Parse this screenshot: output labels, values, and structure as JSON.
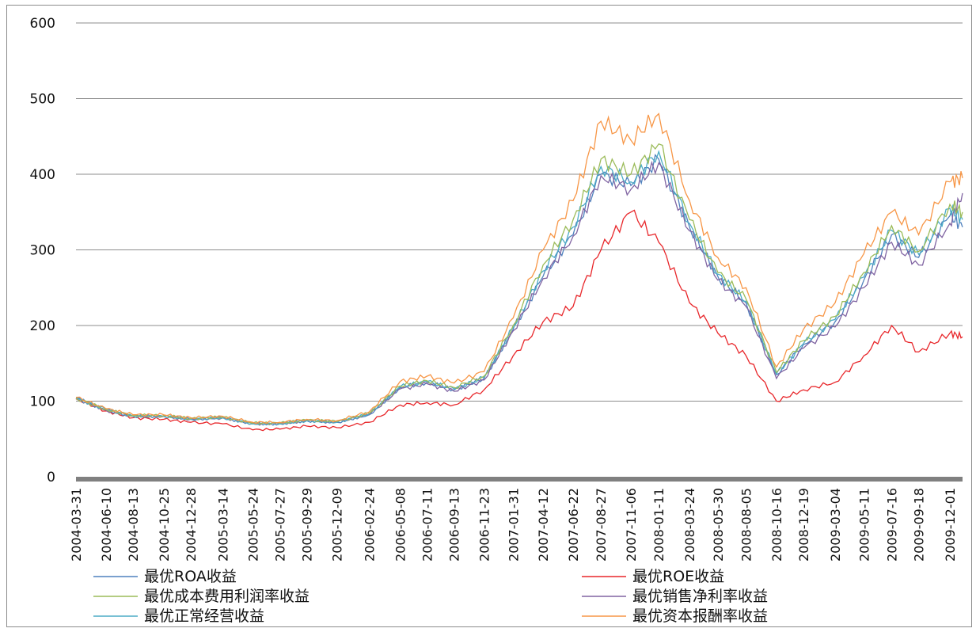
{
  "chart_data": {
    "type": "line",
    "title": "",
    "xlabel": "",
    "ylabel": "",
    "ylim": [
      0,
      600
    ],
    "y_ticks": [
      "0",
      "100",
      "200",
      "300",
      "400",
      "500",
      "600"
    ],
    "grid": "horizontal",
    "legend_position": "bottom",
    "x_tick_labels": [
      "2004-03-31",
      "2004-06-10",
      "2004-08-13",
      "2004-10-25",
      "2004-12-28",
      "2005-03-14",
      "2005-05-24",
      "2005-07-27",
      "2005-09-29",
      "2005-12-09",
      "2006-02-24",
      "2006-05-08",
      "2006-07-11",
      "2006-09-13",
      "2006-11-23",
      "2007-01-31",
      "2007-04-12",
      "2007-06-22",
      "2007-08-27",
      "2007-11-06",
      "2008-01-11",
      "2008-03-24",
      "2008-05-30",
      "2008-08-05",
      "2008-10-16",
      "2008-12-19",
      "2009-03-04",
      "2009-05-11",
      "2009-07-16",
      "2009-09-18",
      "2009-12-01"
    ],
    "x_positions": [
      "2004-03-31",
      "2004-06-10",
      "2004-08-13",
      "2004-10-25",
      "2004-12-28",
      "2005-03-14",
      "2005-05-24",
      "2005-07-27",
      "2005-09-29",
      "2005-12-09",
      "2006-02-24",
      "2006-05-08",
      "2006-07-11",
      "2006-09-13",
      "2006-11-23",
      "2007-01-31",
      "2007-04-12",
      "2007-06-22",
      "2007-08-27",
      "2007-11-06",
      "2008-01-11",
      "2008-03-24",
      "2008-05-30",
      "2008-08-05",
      "2008-10-16",
      "2008-12-19",
      "2009-03-04",
      "2009-05-11",
      "2009-07-16",
      "2009-09-18",
      "2009-12-01",
      "2009-12-31"
    ],
    "series": [
      {
        "name": "最优ROA收益",
        "color": "#4f81bd",
        "values": [
          104,
          88,
          80,
          80,
          76,
          78,
          70,
          70,
          74,
          72,
          82,
          118,
          125,
          115,
          130,
          195,
          265,
          320,
          400,
          385,
          420,
          330,
          265,
          230,
          135,
          175,
          205,
          260,
          320,
          290,
          345,
          330
        ]
      },
      {
        "name": "最优ROE收益",
        "color": "#e8262a",
        "values": [
          103,
          87,
          78,
          76,
          72,
          70,
          62,
          63,
          67,
          65,
          72,
          95,
          98,
          95,
          115,
          160,
          205,
          225,
          300,
          350,
          310,
          230,
          190,
          160,
          100,
          115,
          125,
          160,
          200,
          165,
          190,
          185
        ]
      },
      {
        "name": "最优成本费用利润率收益",
        "color": "#9bbb59",
        "values": [
          104,
          89,
          81,
          81,
          77,
          79,
          71,
          71,
          75,
          73,
          84,
          120,
          127,
          118,
          133,
          200,
          280,
          340,
          420,
          400,
          440,
          340,
          270,
          235,
          138,
          180,
          212,
          270,
          332,
          298,
          360,
          350
        ]
      },
      {
        "name": "最优销售净利率收益",
        "color": "#8064a2",
        "values": [
          104,
          88,
          80,
          80,
          76,
          78,
          70,
          70,
          74,
          72,
          82,
          116,
          123,
          113,
          128,
          193,
          262,
          318,
          398,
          380,
          415,
          325,
          260,
          225,
          130,
          170,
          198,
          250,
          310,
          280,
          335,
          375
        ]
      },
      {
        "name": "最优正常经营收益",
        "color": "#4bacc6",
        "values": [
          104,
          89,
          80,
          80,
          76,
          78,
          70,
          70,
          74,
          72,
          83,
          119,
          126,
          116,
          131,
          197,
          272,
          330,
          410,
          390,
          430,
          335,
          268,
          232,
          136,
          176,
          208,
          264,
          326,
          294,
          355,
          340
        ]
      },
      {
        "name": "最优资本报酬率收益",
        "color": "#f79646",
        "values": [
          105,
          90,
          82,
          82,
          78,
          80,
          72,
          72,
          76,
          74,
          86,
          126,
          133,
          124,
          139,
          210,
          300,
          365,
          470,
          445,
          480,
          365,
          290,
          250,
          145,
          195,
          230,
          295,
          350,
          320,
          390,
          395
        ]
      }
    ]
  }
}
